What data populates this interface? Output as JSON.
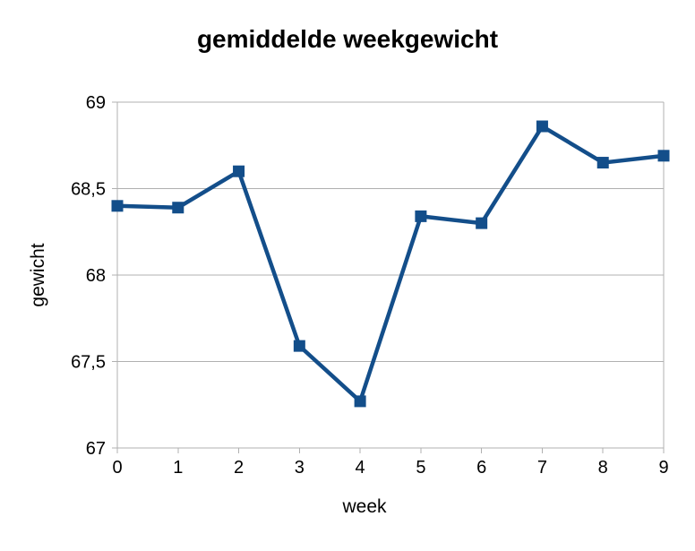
{
  "chart_data": {
    "type": "line",
    "title": "gemiddelde weekgewicht",
    "xlabel": "week",
    "ylabel": "gewicht",
    "x": [
      0,
      1,
      2,
      3,
      4,
      5,
      6,
      7,
      8,
      9
    ],
    "series": [
      {
        "name": "gewicht",
        "values": [
          68.4,
          68.39,
          68.6,
          67.59,
          67.27,
          68.34,
          68.3,
          68.86,
          68.65,
          68.69
        ],
        "marker": "square"
      }
    ],
    "xlim": [
      0,
      9
    ],
    "ylim": [
      67,
      69
    ],
    "y_ticks": [
      69,
      68.5,
      68,
      67.5,
      67
    ],
    "y_tick_labels": [
      "69",
      "68,5",
      "68",
      "67,5",
      "67"
    ],
    "x_tick_labels": [
      "0",
      "1",
      "2",
      "3",
      "4",
      "5",
      "6",
      "7",
      "8",
      "9"
    ],
    "grid": "horizontal",
    "legend": "none",
    "colors": {
      "series": "#134e8a",
      "grid": "#b0b0b0",
      "axis": "#b0b0b0",
      "text": "#000000",
      "background": "#ffffff"
    }
  }
}
